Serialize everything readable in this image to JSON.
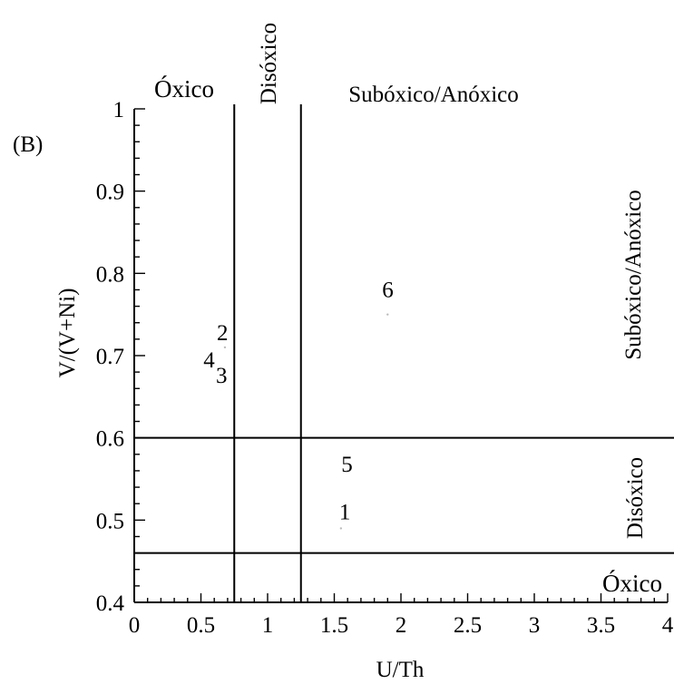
{
  "chart_data": {
    "type": "scatter",
    "panel_label": "(B)",
    "xlabel": "U/Th",
    "ylabel": "V/(V+Ni)",
    "xlim": [
      0,
      4
    ],
    "ylim": [
      0.4,
      1.0
    ],
    "x_ticks": [
      "0",
      "0.5",
      "1",
      "1.5",
      "2",
      "2.5",
      "3",
      "3.5",
      "4"
    ],
    "x_tick_values": [
      0,
      0.5,
      1,
      1.5,
      2,
      2.5,
      3,
      3.5,
      4
    ],
    "y_ticks": [
      "0.4",
      "0.5",
      "0.6",
      "0.7",
      "0.8",
      "0.9",
      "1"
    ],
    "y_tick_values": [
      0.4,
      0.5,
      0.6,
      0.7,
      0.8,
      0.9,
      1.0
    ],
    "grid": false,
    "points": [
      {
        "label": "1",
        "x": 1.55,
        "y": 0.49
      },
      {
        "label": "2",
        "x": 0.68,
        "y": 0.71
      },
      {
        "label": "3",
        "x": 0.68,
        "y": 0.68
      },
      {
        "label": "4",
        "x": 0.58,
        "y": 0.69
      },
      {
        "label": "5",
        "x": 1.6,
        "y": 0.56
      },
      {
        "label": "6",
        "x": 1.9,
        "y": 0.75
      }
    ],
    "vertical_thresholds": [
      0.75,
      1.25
    ],
    "horizontal_thresholds": [
      0.46,
      0.6
    ],
    "zone_labels": {
      "top_oxic": "Óxico",
      "top_dysoxic": "Disóxico",
      "top_suboxic": "Subóxico/Anóxico",
      "right_suboxic": "Subóxico/Anóxico",
      "right_dysoxic": "Disóxico",
      "right_oxic": "Óxico"
    }
  }
}
